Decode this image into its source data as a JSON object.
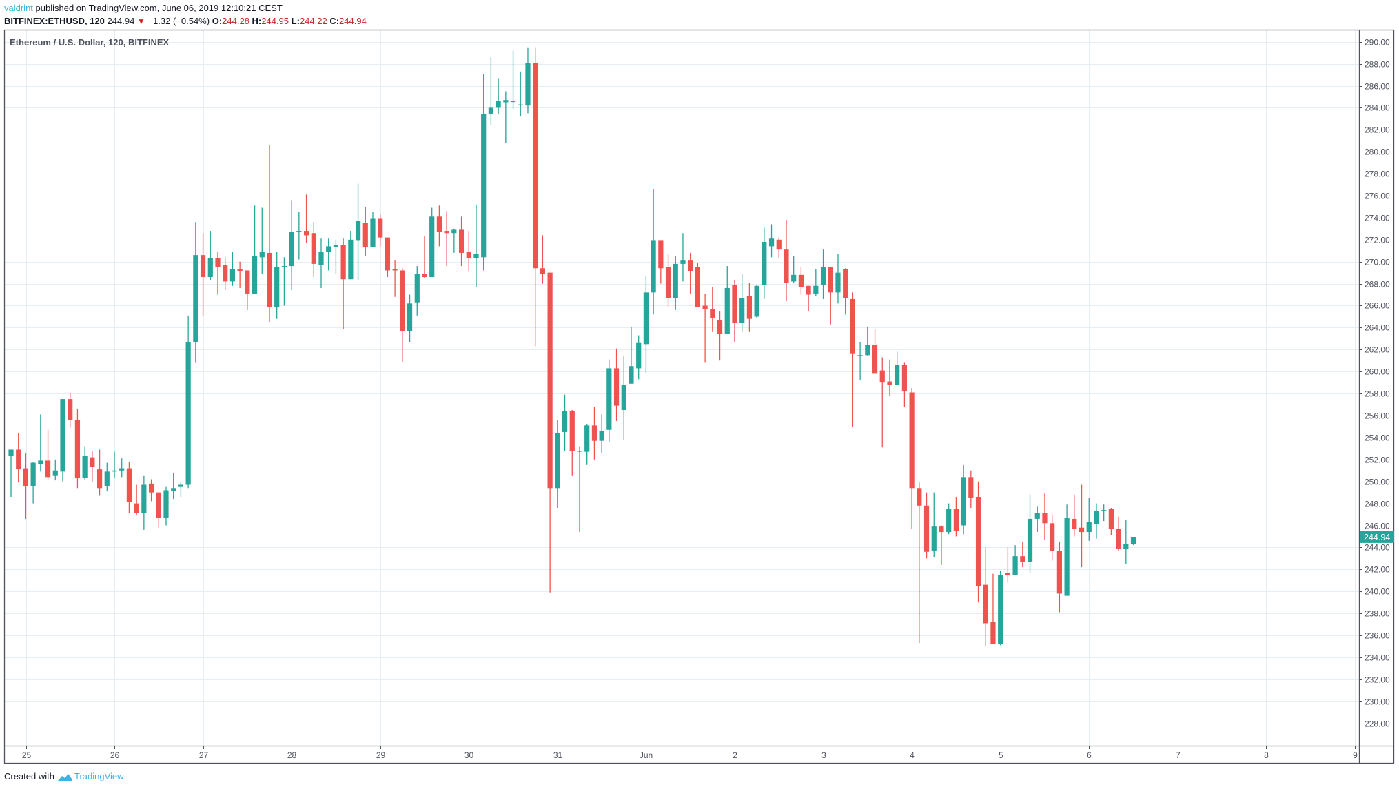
{
  "header": {
    "author": "valdrint",
    "published_text": " published on TradingView.com, June 06, 2019 12:10:21 CEST",
    "symbol": "BITFINEX:ETHUSD, 120",
    "last_price": "244.94",
    "change_icon": "down-triangle-icon",
    "change": "−1.32 (−0.54%)",
    "o_label": "O:",
    "o_value": "244.28",
    "h_label": "H:",
    "h_value": "244.95",
    "l_label": "L:",
    "l_value": "244.22",
    "c_label": "C:",
    "c_value": "244.94"
  },
  "footer": {
    "created_with": "Created with",
    "brand": "TradingView",
    "logo_icon": "tradingview-logo-icon"
  },
  "colors": {
    "up": "#26a69a",
    "down": "#ef5350",
    "grid": "#e6edf3",
    "axis": "#50535e",
    "author": "#3bb3e4",
    "value_red": "#c62828"
  },
  "chart_data": {
    "type": "candlestick",
    "title": "Ethereum / U.S. Dollar, 120, BITFINEX",
    "interval_minutes": 120,
    "xlabel": "",
    "ylabel": "",
    "ylim": [
      226.8,
      291.5
    ],
    "y_ticks": [
      "290.00",
      "288.00",
      "286.00",
      "284.00",
      "282.00",
      "280.00",
      "278.00",
      "276.00",
      "274.00",
      "272.00",
      "270.00",
      "268.00",
      "266.00",
      "264.00",
      "262.00",
      "260.00",
      "258.00",
      "256.00",
      "254.00",
      "252.00",
      "250.00",
      "248.00",
      "246.00",
      "244.00",
      "242.00",
      "240.00",
      "238.00",
      "236.00",
      "234.00",
      "232.00",
      "230.00",
      "228.00"
    ],
    "x_ticks": [
      "25",
      "26",
      "27",
      "28",
      "29",
      "30",
      "31",
      "Jun",
      "2",
      "3",
      "4",
      "5",
      "6",
      "7",
      "8",
      "9"
    ],
    "last_price_label": "244.94",
    "grid": true,
    "first_candle": "2019-05-24 20:00",
    "ohlc_columns": [
      "open",
      "high",
      "low",
      "close"
    ],
    "candles": [
      [
        252.3,
        252.9,
        248.6,
        252.9
      ],
      [
        252.9,
        254.4,
        249.9,
        251.1
      ],
      [
        251.2,
        252.6,
        246.6,
        249.6
      ],
      [
        249.6,
        251.8,
        248.0,
        251.7
      ],
      [
        251.6,
        256.1,
        250.9,
        251.9
      ],
      [
        251.9,
        254.7,
        250.2,
        250.4
      ],
      [
        250.5,
        252.0,
        250.1,
        251.0
      ],
      [
        250.9,
        257.5,
        250.0,
        257.5
      ],
      [
        257.5,
        258.1,
        254.9,
        255.6
      ],
      [
        255.6,
        256.6,
        249.4,
        250.3
      ],
      [
        250.3,
        253.2,
        250.1,
        252.3
      ],
      [
        252.2,
        252.8,
        250.0,
        251.3
      ],
      [
        251.1,
        252.9,
        248.7,
        249.4
      ],
      [
        249.6,
        251.7,
        249.1,
        250.9
      ],
      [
        250.9,
        252.7,
        250.3,
        251.0
      ],
      [
        251.0,
        252.1,
        250.4,
        251.2
      ],
      [
        251.2,
        251.8,
        247.1,
        248.1
      ],
      [
        248.0,
        249.7,
        246.9,
        247.1
      ],
      [
        247.1,
        250.5,
        245.6,
        249.7
      ],
      [
        249.8,
        250.2,
        248.2,
        249.0
      ],
      [
        249.0,
        249.0,
        245.8,
        246.7
      ],
      [
        246.7,
        249.5,
        246.0,
        249.2
      ],
      [
        249.1,
        250.8,
        248.4,
        249.4
      ],
      [
        249.5,
        250.0,
        248.6,
        249.7
      ],
      [
        249.7,
        265.1,
        249.4,
        262.7
      ],
      [
        262.7,
        273.6,
        260.8,
        270.6
      ],
      [
        270.6,
        272.6,
        265.1,
        268.6
      ],
      [
        268.6,
        272.8,
        268.3,
        270.3
      ],
      [
        270.3,
        270.9,
        267.0,
        269.5
      ],
      [
        269.7,
        270.4,
        267.4,
        268.2
      ],
      [
        268.2,
        270.9,
        267.8,
        269.3
      ],
      [
        269.3,
        270.0,
        267.6,
        269.1
      ],
      [
        269.2,
        269.2,
        265.6,
        267.1
      ],
      [
        267.1,
        275.1,
        267.1,
        270.5
      ],
      [
        270.4,
        274.9,
        268.9,
        270.9
      ],
      [
        270.8,
        280.6,
        264.5,
        265.9
      ],
      [
        265.9,
        270.9,
        264.8,
        269.5
      ],
      [
        269.5,
        270.4,
        266.0,
        269.6
      ],
      [
        269.6,
        275.6,
        267.4,
        272.7
      ],
      [
        272.7,
        274.5,
        270.2,
        272.8
      ],
      [
        272.8,
        276.1,
        271.7,
        272.4
      ],
      [
        272.6,
        273.6,
        268.6,
        269.8
      ],
      [
        269.7,
        272.1,
        267.6,
        270.9
      ],
      [
        270.9,
        272.1,
        269.2,
        271.4
      ],
      [
        271.3,
        272.0,
        268.9,
        271.5
      ],
      [
        271.5,
        272.1,
        263.9,
        268.4
      ],
      [
        268.4,
        272.8,
        268.4,
        272.0
      ],
      [
        271.9,
        277.1,
        268.3,
        273.7
      ],
      [
        273.5,
        275.0,
        270.5,
        271.3
      ],
      [
        271.3,
        274.5,
        271.3,
        273.9
      ],
      [
        273.9,
        274.3,
        271.4,
        272.2
      ],
      [
        272.2,
        272.2,
        268.6,
        269.2
      ],
      [
        269.3,
        270.1,
        266.8,
        269.2
      ],
      [
        269.2,
        269.4,
        260.9,
        263.7
      ],
      [
        263.7,
        267.0,
        262.7,
        266.2
      ],
      [
        266.3,
        269.6,
        265.1,
        268.9
      ],
      [
        268.9,
        272.3,
        268.5,
        268.6
      ],
      [
        268.6,
        274.9,
        268.6,
        274.1
      ],
      [
        274.1,
        275.1,
        271.4,
        272.7
      ],
      [
        272.8,
        274.6,
        269.6,
        272.6
      ],
      [
        272.6,
        273.0,
        270.8,
        272.9
      ],
      [
        272.9,
        274.1,
        269.6,
        270.8
      ],
      [
        270.9,
        272.8,
        269.1,
        270.3
      ],
      [
        270.3,
        275.2,
        267.7,
        270.7
      ],
      [
        270.4,
        287.1,
        269.2,
        283.4
      ],
      [
        283.4,
        288.6,
        282.4,
        284.0
      ],
      [
        284.0,
        286.7,
        283.4,
        284.6
      ],
      [
        284.5,
        285.5,
        280.8,
        284.7
      ],
      [
        284.6,
        289.2,
        283.9,
        284.6
      ],
      [
        284.3,
        287.3,
        283.2,
        284.3
      ],
      [
        284.2,
        289.5,
        283.5,
        288.1
      ],
      [
        288.1,
        289.5,
        262.3,
        269.4
      ],
      [
        269.4,
        272.4,
        268.0,
        268.9
      ],
      [
        269.0,
        269.0,
        239.9,
        249.4
      ],
      [
        249.4,
        255.6,
        247.6,
        254.4
      ],
      [
        254.5,
        257.9,
        252.8,
        256.4
      ],
      [
        256.4,
        256.5,
        250.5,
        252.8
      ],
      [
        252.8,
        253.2,
        245.4,
        252.7
      ],
      [
        252.7,
        255.2,
        251.5,
        255.1
      ],
      [
        255.1,
        256.8,
        252.0,
        253.7
      ],
      [
        253.7,
        256.1,
        252.6,
        254.6
      ],
      [
        254.7,
        261.1,
        253.6,
        260.3
      ],
      [
        260.3,
        262.1,
        255.5,
        256.9
      ],
      [
        256.5,
        261.4,
        253.8,
        258.8
      ],
      [
        258.9,
        264.1,
        258.9,
        260.5
      ],
      [
        260.3,
        263.3,
        259.3,
        262.6
      ],
      [
        262.5,
        268.7,
        259.9,
        267.2
      ],
      [
        267.2,
        276.6,
        265.2,
        271.9
      ],
      [
        271.9,
        271.9,
        268.0,
        269.4
      ],
      [
        269.5,
        270.7,
        265.9,
        266.7
      ],
      [
        266.7,
        270.5,
        265.6,
        269.8
      ],
      [
        269.8,
        272.6,
        268.2,
        270.1
      ],
      [
        270.1,
        270.8,
        267.1,
        269.1
      ],
      [
        269.5,
        269.9,
        265.9,
        265.9
      ],
      [
        266.0,
        267.1,
        260.8,
        265.7
      ],
      [
        265.7,
        267.7,
        263.6,
        264.9
      ],
      [
        264.7,
        265.5,
        261.0,
        263.4
      ],
      [
        263.4,
        269.6,
        263.4,
        267.6
      ],
      [
        267.9,
        268.3,
        262.7,
        264.4
      ],
      [
        264.4,
        268.9,
        263.6,
        266.7
      ],
      [
        266.9,
        268.1,
        263.6,
        264.8
      ],
      [
        265.0,
        267.9,
        264.9,
        267.8
      ],
      [
        267.9,
        273.1,
        266.6,
        271.8
      ],
      [
        271.4,
        273.4,
        270.4,
        272.1
      ],
      [
        272.0,
        272.2,
        270.3,
        271.1
      ],
      [
        271.1,
        273.8,
        266.4,
        268.1
      ],
      [
        268.2,
        270.5,
        268.1,
        268.8
      ],
      [
        268.8,
        269.5,
        267.0,
        267.7
      ],
      [
        267.8,
        267.8,
        265.5,
        267.0
      ],
      [
        267.1,
        269.3,
        266.9,
        267.8
      ],
      [
        267.9,
        271.1,
        266.6,
        269.5
      ],
      [
        269.5,
        269.5,
        264.3,
        267.2
      ],
      [
        267.2,
        270.7,
        266.2,
        269.0
      ],
      [
        269.3,
        269.4,
        265.2,
        266.7
      ],
      [
        266.6,
        267.2,
        255.0,
        261.6
      ],
      [
        261.5,
        262.7,
        259.2,
        261.5
      ],
      [
        261.5,
        264.1,
        261.4,
        262.4
      ],
      [
        262.4,
        263.9,
        259.8,
        259.8
      ],
      [
        260.1,
        261.3,
        253.1,
        259.0
      ],
      [
        259.1,
        261.1,
        257.8,
        258.8
      ],
      [
        258.8,
        261.8,
        258.8,
        260.6
      ],
      [
        260.6,
        260.8,
        256.8,
        258.2
      ],
      [
        258.1,
        258.5,
        245.7,
        249.4
      ],
      [
        249.4,
        249.9,
        235.3,
        247.8
      ],
      [
        247.8,
        249.0,
        243.0,
        243.6
      ],
      [
        243.7,
        249.0,
        243.1,
        245.9
      ],
      [
        245.9,
        246.0,
        242.4,
        245.4
      ],
      [
        245.4,
        248.0,
        245.2,
        247.5
      ],
      [
        247.5,
        248.6,
        245.0,
        245.5
      ],
      [
        246.0,
        251.5,
        245.2,
        250.4
      ],
      [
        250.4,
        251.0,
        247.6,
        248.5
      ],
      [
        248.6,
        250.0,
        239.0,
        240.5
      ],
      [
        240.6,
        244.0,
        235.0,
        237.1
      ],
      [
        237.2,
        241.6,
        235.2,
        235.2
      ],
      [
        235.2,
        241.9,
        235.1,
        241.5
      ],
      [
        241.7,
        244.0,
        240.8,
        241.5
      ],
      [
        241.5,
        244.2,
        241.5,
        243.2
      ],
      [
        243.2,
        244.5,
        242.2,
        242.7
      ],
      [
        242.7,
        248.8,
        241.7,
        246.6
      ],
      [
        246.6,
        247.7,
        245.4,
        247.1
      ],
      [
        247.1,
        248.9,
        244.7,
        246.2
      ],
      [
        246.2,
        247.0,
        242.8,
        243.7
      ],
      [
        243.7,
        244.5,
        238.1,
        239.8
      ],
      [
        239.6,
        247.9,
        239.6,
        246.7
      ],
      [
        246.6,
        248.8,
        245.0,
        245.7
      ],
      [
        245.8,
        249.7,
        242.2,
        245.4
      ],
      [
        245.4,
        248.5,
        244.6,
        246.3
      ],
      [
        246.1,
        248.0,
        244.8,
        247.3
      ],
      [
        247.4,
        247.9,
        246.4,
        247.4
      ],
      [
        247.5,
        247.6,
        245.1,
        245.7
      ],
      [
        245.7,
        246.8,
        243.7,
        243.9
      ],
      [
        243.9,
        246.5,
        242.5,
        244.3
      ],
      [
        244.28,
        244.95,
        244.22,
        244.94
      ]
    ]
  }
}
